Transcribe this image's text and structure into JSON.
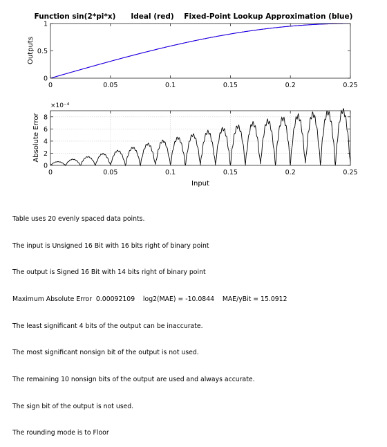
{
  "chart_data": [
    {
      "type": "line",
      "title": "Function sin(2*pi*x)      Ideal (red)    Fixed-Point Lookup Approximation (blue)",
      "xlabel": "",
      "ylabel": "Outputs",
      "xlim": [
        0,
        0.25
      ],
      "ylim": [
        0,
        1
      ],
      "xticks": [
        "0",
        "0.05",
        "0.1",
        "0.15",
        "0.2",
        "0.25"
      ],
      "yticks": [
        "0",
        "0.5",
        "1"
      ],
      "grid": false,
      "series": [
        {
          "name": "Ideal",
          "color": "#ff0000",
          "function": "sin(2*pi*x)"
        },
        {
          "name": "Fixed-Point Lookup Approximation",
          "color": "#0000ff",
          "function": "sin(2*pi*x)"
        }
      ]
    },
    {
      "type": "line",
      "title": "",
      "xlabel": "Input",
      "ylabel": "Absolute Error",
      "xlim": [
        0,
        0.25
      ],
      "ylim": [
        0,
        0.0009
      ],
      "exponent_label": "×10⁻⁴",
      "xticks": [
        "0",
        "0.05",
        "0.1",
        "0.15",
        "0.2",
        "0.25"
      ],
      "yticks": [
        "0",
        "2",
        "4",
        "6",
        "8"
      ],
      "ytick_values": [
        0,
        0.0002,
        0.0004,
        0.0006,
        0.0008
      ],
      "grid": true,
      "breakpoints": 20,
      "x": [
        0,
        0.0125,
        0.025,
        0.0375,
        0.05,
        0.0625,
        0.075,
        0.0875,
        0.1,
        0.1125,
        0.125,
        0.1375,
        0.15,
        0.1625,
        0.175,
        0.1875,
        0.2,
        0.2125,
        0.225,
        0.2375,
        0.25
      ],
      "segment_peak_errors": [
        6e-05,
        0.0001,
        0.00014,
        0.00019,
        0.00024,
        0.00029,
        0.00035,
        0.0004,
        0.00045,
        0.0005,
        0.00055,
        0.0006,
        0.00064,
        0.00069,
        0.00073,
        0.00077,
        0.00081,
        0.00084,
        0.00087,
        0.0009
      ],
      "series": [
        {
          "name": "Absolute Error",
          "color": "#000000"
        }
      ]
    }
  ],
  "notes": [
    "Table uses 20 evenly spaced data points.",
    "The input is Unsigned 16 Bit with 16 bits right of binary point",
    "The output is Signed 16 Bit with 14 bits right of binary point",
    "Maximum Absolute Error  0.00092109    log2(MAE) = -10.0844    MAE/yBit = 15.0912",
    "The least significant 4 bits of the output can be inaccurate.",
    "The most significant nonsign bit of the output is not used.",
    "The remaining 10 nonsign bits of the output are used and always accurate.",
    "The sign bit of the output is not used.",
    "The rounding mode is to Floor"
  ]
}
